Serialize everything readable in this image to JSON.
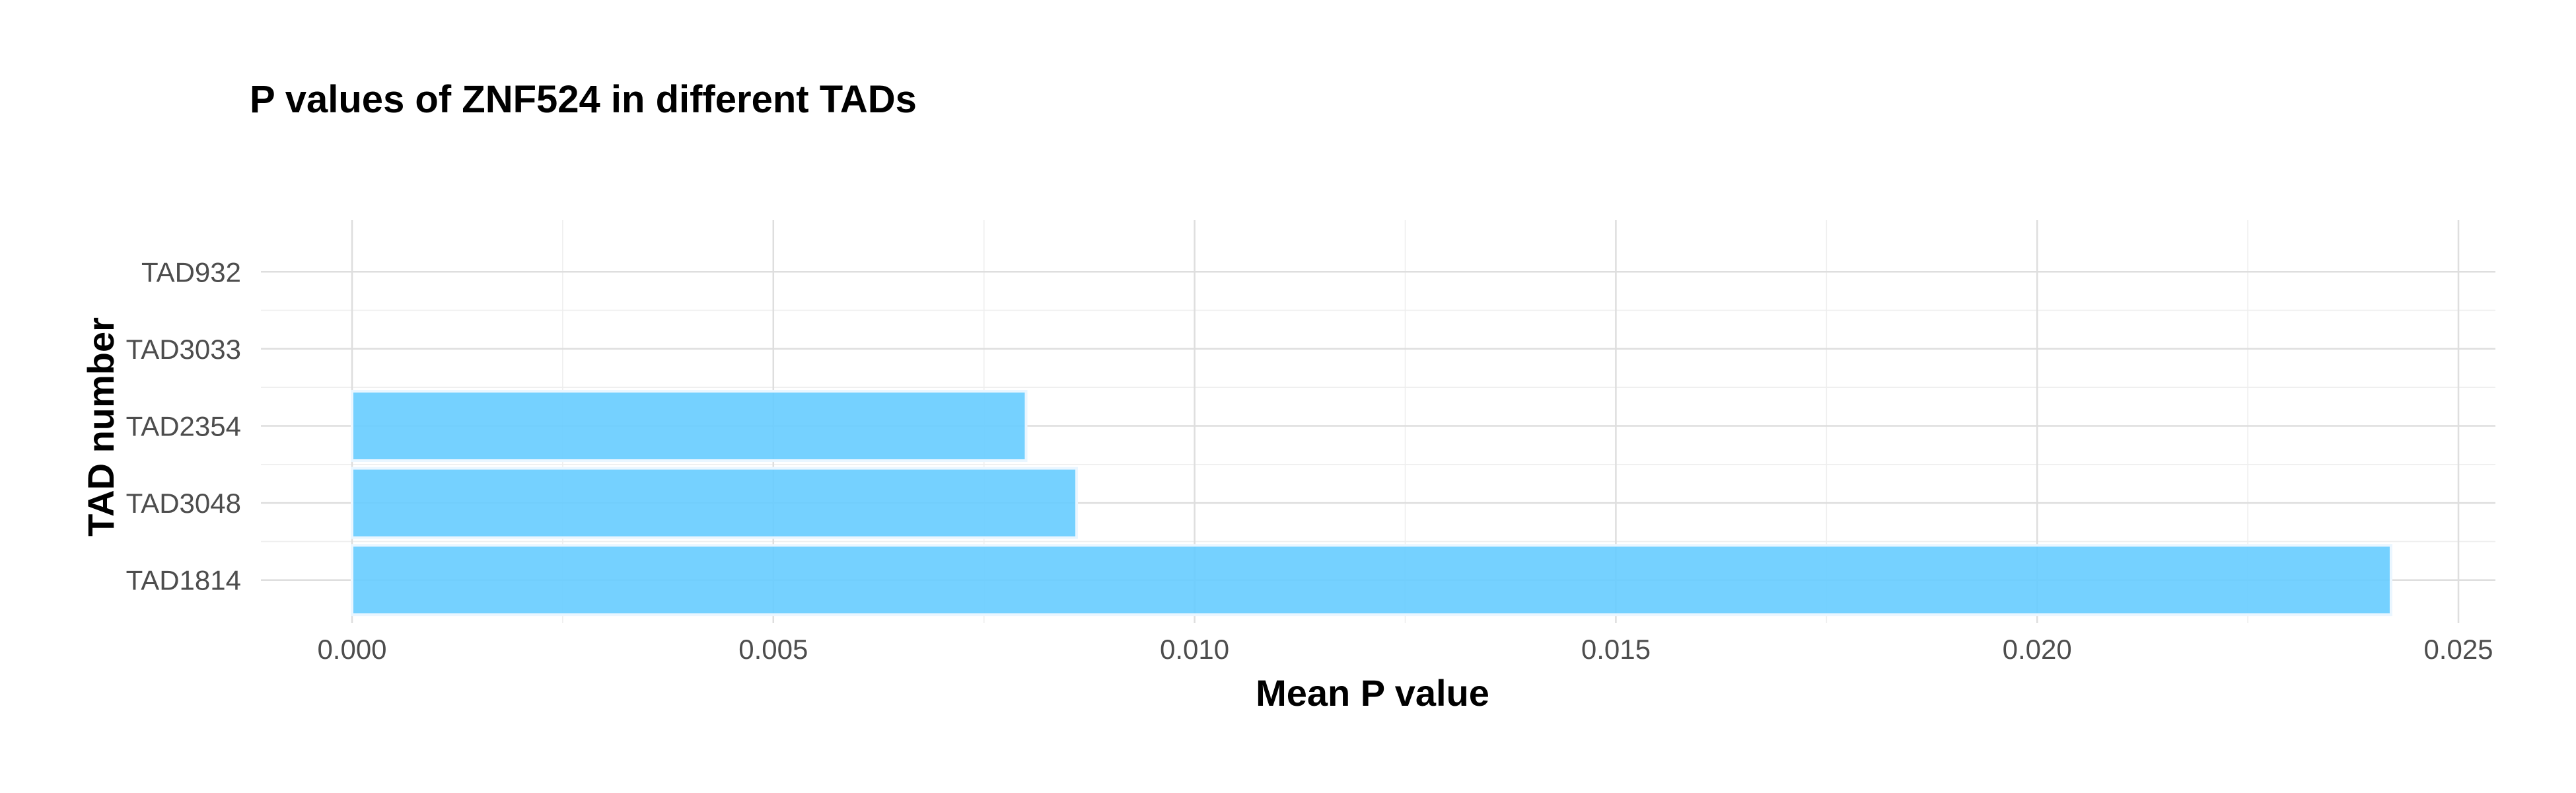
{
  "chart_data": {
    "type": "bar",
    "orientation": "horizontal",
    "title": "P values of ZNF524 in different TADs",
    "xlabel": "Mean P value",
    "ylabel": "TAD number",
    "categories": [
      "TAD1814",
      "TAD3048",
      "TAD2354",
      "TAD3033",
      "TAD932"
    ],
    "values": [
      0.0242,
      0.0086,
      0.008,
      0.0,
      0.0
    ],
    "xlim": [
      0,
      0.025
    ],
    "x_ticks": [
      "0.000",
      "0.005",
      "0.010",
      "0.015",
      "0.020",
      "0.025"
    ],
    "bar_color": "#66CCFF",
    "grid": true,
    "legend": "none"
  }
}
